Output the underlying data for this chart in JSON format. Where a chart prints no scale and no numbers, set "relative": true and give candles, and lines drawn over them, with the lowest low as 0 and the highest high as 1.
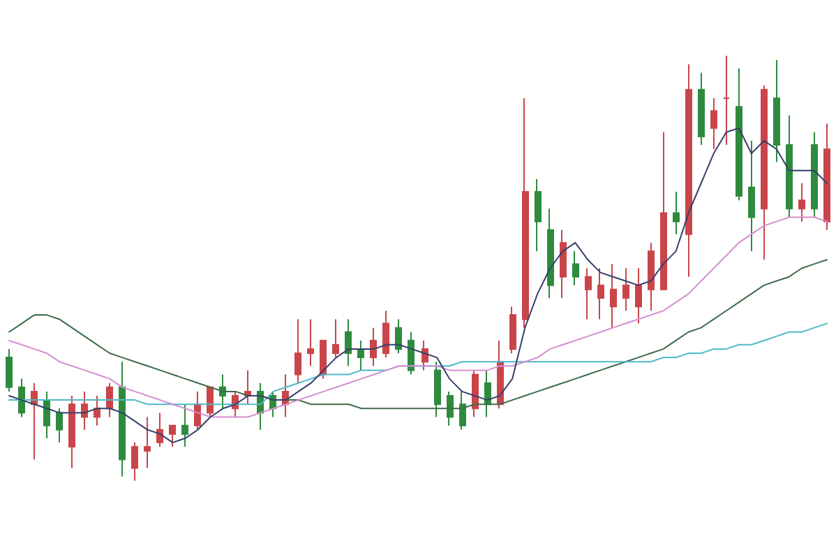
{
  "chart_data": {
    "type": "candlestick",
    "relative": true,
    "categories": [
      null,
      null,
      null,
      null,
      null,
      null,
      null,
      null,
      null,
      null,
      null,
      null,
      null,
      null,
      null,
      null,
      null,
      null,
      null,
      null,
      null,
      null,
      null,
      null,
      null,
      null,
      null,
      null,
      null,
      null,
      null,
      null,
      null,
      null,
      null,
      null,
      null,
      null,
      null,
      null,
      null,
      null,
      null,
      null,
      null,
      null,
      null,
      null,
      null,
      null,
      null,
      null,
      null,
      null,
      null,
      null,
      null,
      null,
      null,
      null,
      null,
      null,
      null,
      null,
      null,
      null
    ],
    "ohlc": [
      [
        0.29,
        0.31,
        0.21,
        0.22
      ],
      [
        0.22,
        0.24,
        0.15,
        0.16
      ],
      [
        0.18,
        0.23,
        0.05,
        0.21
      ],
      [
        0.19,
        0.21,
        0.1,
        0.13
      ],
      [
        0.16,
        0.17,
        0.09,
        0.12
      ],
      [
        0.08,
        0.2,
        0.03,
        0.18
      ],
      [
        0.15,
        0.21,
        0.12,
        0.18
      ],
      [
        0.15,
        0.2,
        0.13,
        0.17
      ],
      [
        0.17,
        0.23,
        0.15,
        0.22
      ],
      [
        0.22,
        0.28,
        0.01,
        0.05
      ],
      [
        0.03,
        0.09,
        0,
        0.08
      ],
      [
        0.07,
        0.15,
        0.03,
        0.08
      ],
      [
        0.09,
        0.16,
        0.08,
        0.12
      ],
      [
        0.11,
        0.13,
        0.08,
        0.13
      ],
      [
        0.13,
        0.18,
        0.08,
        0.11
      ],
      [
        0.13,
        0.21,
        0.12,
        0.18
      ],
      [
        0.16,
        0.22,
        0.15,
        0.22
      ],
      [
        0.22,
        0.25,
        0.17,
        0.2
      ],
      [
        0.17,
        0.21,
        0.15,
        0.2
      ],
      [
        0.2,
        0.26,
        0.18,
        0.21
      ],
      [
        0.21,
        0.23,
        0.12,
        0.16
      ],
      [
        0.2,
        0.21,
        0.15,
        0.17
      ],
      [
        0.18,
        0.25,
        0.15,
        0.21
      ],
      [
        0.25,
        0.38,
        0.23,
        0.3
      ],
      [
        0.3,
        0.38,
        0.27,
        0.31
      ],
      [
        0.25,
        0.33,
        0.24,
        0.33
      ],
      [
        0.3,
        0.38,
        0.29,
        0.32
      ],
      [
        0.35,
        0.38,
        0.27,
        0.3
      ],
      [
        0.31,
        0.33,
        0.26,
        0.29
      ],
      [
        0.29,
        0.36,
        0.27,
        0.33
      ],
      [
        0.3,
        0.4,
        0.29,
        0.37
      ],
      [
        0.36,
        0.38,
        0.3,
        0.31
      ],
      [
        0.33,
        0.35,
        0.25,
        0.26
      ],
      [
        0.28,
        0.33,
        0.26,
        0.31
      ],
      [
        0.26,
        0.28,
        0.15,
        0.18
      ],
      [
        0.2,
        0.21,
        0.13,
        0.15
      ],
      [
        0.18,
        0.21,
        0.12,
        0.13
      ],
      [
        0.17,
        0.26,
        0.15,
        0.25
      ],
      [
        0.23,
        0.26,
        0.15,
        0.18
      ],
      [
        0.18,
        0.33,
        0.17,
        0.28
      ],
      [
        0.31,
        0.41,
        0.3,
        0.39
      ],
      [
        0.38,
        0.9,
        0.36,
        0.68
      ],
      [
        0.68,
        0.71,
        0.54,
        0.61
      ],
      [
        0.59,
        0.64,
        0.43,
        0.46
      ],
      [
        0.48,
        0.59,
        0.43,
        0.56
      ],
      [
        0.51,
        0.54,
        0.46,
        0.48
      ],
      [
        0.45,
        0.5,
        0.38,
        0.48
      ],
      [
        0.43,
        0.5,
        0.38,
        0.46
      ],
      [
        0.41,
        0.51,
        0.36,
        0.45
      ],
      [
        0.43,
        0.5,
        0.4,
        0.46
      ],
      [
        0.41,
        0.5,
        0.37,
        0.46
      ],
      [
        0.45,
        0.56,
        0.4,
        0.54
      ],
      [
        0.45,
        0.82,
        0.45,
        0.63
      ],
      [
        0.63,
        0.68,
        0.58,
        0.61
      ],
      [
        0.58,
        0.98,
        0.48,
        0.92
      ],
      [
        0.92,
        0.96,
        0.79,
        0.81
      ],
      [
        0.83,
        0.9,
        0.78,
        0.87
      ],
      [
        0.9,
        1,
        0.79,
        0.9
      ],
      [
        0.88,
        0.97,
        0.66,
        0.67
      ],
      [
        0.69,
        0.8,
        0.54,
        0.62
      ],
      [
        0.64,
        0.93,
        0.52,
        0.92
      ],
      [
        0.9,
        0.99,
        0.75,
        0.79
      ],
      [
        0.79,
        0.86,
        0.62,
        0.64
      ],
      [
        0.64,
        0.7,
        0.61,
        0.66
      ],
      [
        0.79,
        0.82,
        0.62,
        0.64
      ],
      [
        0.61,
        0.84,
        0.59,
        0.78
      ]
    ],
    "series": [
      {
        "type": "line",
        "color": "#3d6b4a",
        "values": [
          0.35,
          0.37,
          0.39,
          0.39,
          0.38,
          0.36,
          0.34,
          0.32,
          0.3,
          0.29,
          0.28,
          0.27,
          0.26,
          0.25,
          0.24,
          0.23,
          0.22,
          0.21,
          0.21,
          0.2,
          0.2,
          0.19,
          0.19,
          0.19,
          0.18,
          0.18,
          0.18,
          0.18,
          0.17,
          0.17,
          0.17,
          0.17,
          0.17,
          0.17,
          0.17,
          0.17,
          0.17,
          0.18,
          0.18,
          0.18,
          0.19,
          0.2,
          0.21,
          0.22,
          0.23,
          0.24,
          0.25,
          0.26,
          0.27,
          0.28,
          0.29,
          0.3,
          0.31,
          0.33,
          0.35,
          0.36,
          0.38,
          0.4,
          0.42,
          0.44,
          0.46,
          0.47,
          0.48,
          0.5,
          0.51,
          0.52
        ]
      },
      {
        "type": "line",
        "color": "#4fb9c9",
        "values": [
          0.19,
          0.19,
          0.19,
          0.19,
          0.19,
          0.19,
          0.19,
          0.19,
          0.19,
          0.19,
          0.19,
          0.18,
          0.18,
          0.18,
          0.18,
          0.18,
          0.18,
          0.18,
          0.18,
          0.18,
          0.18,
          0.21,
          0.22,
          0.23,
          0.24,
          0.25,
          0.25,
          0.25,
          0.26,
          0.26,
          0.26,
          0.27,
          0.27,
          0.27,
          0.27,
          0.27,
          0.28,
          0.28,
          0.28,
          0.28,
          0.28,
          0.28,
          0.28,
          0.28,
          0.28,
          0.28,
          0.28,
          0.28,
          0.28,
          0.28,
          0.28,
          0.28,
          0.29,
          0.29,
          0.3,
          0.3,
          0.31,
          0.31,
          0.32,
          0.32,
          0.33,
          0.34,
          0.35,
          0.35,
          0.36,
          0.37
        ]
      },
      {
        "type": "line",
        "color": "#d58ed0",
        "values": [
          0.33,
          0.32,
          0.31,
          0.3,
          0.28,
          0.27,
          0.26,
          0.25,
          0.24,
          0.22,
          0.21,
          0.2,
          0.19,
          0.18,
          0.17,
          0.16,
          0.15,
          0.15,
          0.15,
          0.15,
          0.16,
          0.17,
          0.18,
          0.19,
          0.2,
          0.21,
          0.22,
          0.23,
          0.24,
          0.25,
          0.26,
          0.27,
          0.27,
          0.27,
          0.27,
          0.26,
          0.26,
          0.26,
          0.26,
          0.27,
          0.27,
          0.28,
          0.29,
          0.31,
          0.32,
          0.33,
          0.34,
          0.35,
          0.36,
          0.37,
          0.38,
          0.39,
          0.4,
          0.42,
          0.44,
          0.47,
          0.5,
          0.53,
          0.56,
          0.58,
          0.6,
          0.61,
          0.62,
          0.62,
          0.62,
          0.61
        ]
      },
      {
        "type": "line",
        "color": "#34406a",
        "values": [
          0.2,
          0.19,
          0.18,
          0.17,
          0.16,
          0.16,
          0.16,
          0.17,
          0.17,
          0.16,
          0.14,
          0.12,
          0.11,
          0.09,
          0.1,
          0.12,
          0.15,
          0.17,
          0.18,
          0.2,
          0.2,
          0.19,
          0.19,
          0.21,
          0.23,
          0.26,
          0.29,
          0.31,
          0.31,
          0.31,
          0.32,
          0.32,
          0.31,
          0.3,
          0.29,
          0.24,
          0.21,
          0.2,
          0.19,
          0.2,
          0.24,
          0.36,
          0.44,
          0.5,
          0.54,
          0.56,
          0.52,
          0.49,
          0.48,
          0.47,
          0.46,
          0.47,
          0.51,
          0.54,
          0.63,
          0.7,
          0.77,
          0.82,
          0.83,
          0.77,
          0.8,
          0.78,
          0.73,
          0.73,
          0.73,
          0.7
        ]
      }
    ]
  }
}
